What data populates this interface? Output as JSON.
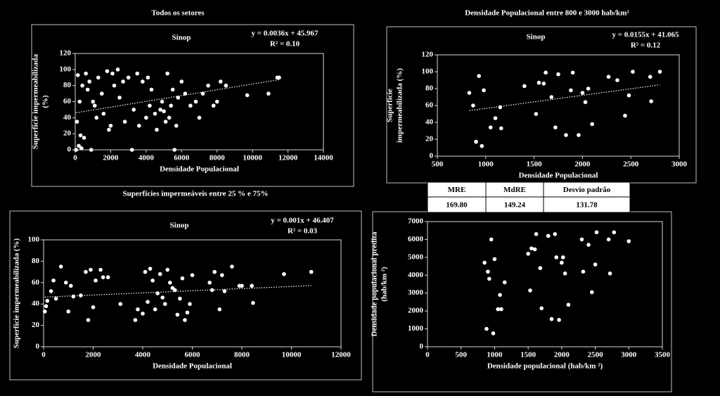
{
  "chart_data": [
    {
      "type": "scatter",
      "title": "Todos os setores",
      "subtitle": "Sinop",
      "annotations": [
        "y = 0.0036x + 45.967",
        "R² = 0.10"
      ],
      "trend": {
        "slope": 0.0036,
        "intercept": 45.967
      },
      "xlabel": "Densidade Populacional",
      "ylabel": [
        "Superfície impermeabilizada",
        "(%)"
      ],
      "color": "#ffffff",
      "x": [
        50,
        100,
        150,
        200,
        250,
        300,
        350,
        400,
        500,
        600,
        700,
        800,
        900,
        1000,
        1100,
        1200,
        1300,
        1500,
        1600,
        1800,
        1900,
        2000,
        2100,
        2200,
        2400,
        2500,
        2700,
        2800,
        3000,
        3200,
        3300,
        3500,
        3600,
        3800,
        4000,
        4100,
        4200,
        4300,
        4500,
        4600,
        4800,
        4900,
        5000,
        5100,
        5200,
        5300,
        5400,
        5500,
        5600,
        5700,
        5800,
        6000,
        6200,
        6500,
        6800,
        7000,
        7200,
        7500,
        7800,
        8000,
        8200,
        8500,
        9700,
        10900,
        11400,
        11500
      ],
      "values": [
        0,
        35,
        93,
        5,
        60,
        18,
        2,
        80,
        15,
        95,
        75,
        85,
        0,
        60,
        55,
        40,
        90,
        70,
        45,
        98,
        25,
        30,
        95,
        80,
        100,
        65,
        85,
        35,
        90,
        0,
        50,
        95,
        30,
        85,
        40,
        90,
        55,
        75,
        45,
        25,
        50,
        60,
        48,
        35,
        95,
        40,
        55,
        75,
        0,
        30,
        65,
        85,
        70,
        55,
        60,
        40,
        70,
        80,
        55,
        60,
        85,
        80,
        68,
        70,
        90,
        90
      ],
      "xlim": [
        0,
        14000
      ],
      "xticks": [
        0,
        2000,
        4000,
        6000,
        8000,
        10000,
        12000,
        14000
      ],
      "ylim": [
        0,
        120
      ],
      "yticks": [
        0,
        20,
        40,
        60,
        80,
        100,
        120
      ]
    },
    {
      "type": "scatter",
      "title": "Densidade Populacional entre 800 e 3000 hab/km²",
      "subtitle": "Sinop",
      "annotations": [
        "y = 0.0155x + 41.065",
        "R² = 0.12"
      ],
      "trend": {
        "slope": 0.0155,
        "intercept": 41.065
      },
      "xlabel": "Densidade Populacional",
      "ylabel": [
        "Superficie",
        "impermeabilizada  (%)"
      ],
      "color": "#ffffff",
      "x": [
        830,
        870,
        900,
        930,
        960,
        980,
        1050,
        1100,
        1150,
        1160,
        1400,
        1520,
        1550,
        1600,
        1620,
        1680,
        1720,
        1750,
        1830,
        1880,
        1900,
        1960,
        2000,
        2030,
        2060,
        2100,
        2270,
        2360,
        2440,
        2480,
        2520,
        2700,
        2710,
        2800
      ],
      "values": [
        75,
        60,
        17,
        95,
        12,
        78,
        34,
        45,
        58,
        33,
        83,
        50,
        87,
        86,
        99,
        70,
        34,
        97,
        25,
        78,
        99,
        25,
        75,
        64,
        80,
        38,
        94,
        90,
        48,
        72,
        100,
        94,
        65,
        100
      ],
      "xlim": [
        500,
        3000
      ],
      "xticks": [
        500,
        1000,
        1500,
        2000,
        2500,
        3000
      ],
      "ylim": [
        0,
        120
      ],
      "yticks": [
        0,
        20,
        40,
        60,
        80,
        100,
        120
      ]
    },
    {
      "type": "scatter",
      "title": "Superfícies impermeáveis entre 25 % e 75%",
      "subtitle": "Sinop",
      "annotations": [
        "y = 0.001x + 46.407",
        "R² = 0.03"
      ],
      "trend": {
        "slope": 0.001,
        "intercept": 46.407
      },
      "xlabel": "Densidade Populacional",
      "ylabel": [
        "Superfície impermeabilizada (%)"
      ],
      "color": "#ffffff",
      "x": [
        50,
        100,
        150,
        300,
        400,
        500,
        700,
        900,
        1000,
        1100,
        1200,
        1500,
        1700,
        1800,
        1900,
        2000,
        2100,
        2300,
        2400,
        2600,
        3100,
        3700,
        3800,
        4000,
        4100,
        4200,
        4300,
        4400,
        4500,
        4600,
        4700,
        4800,
        4900,
        5000,
        5100,
        5200,
        5300,
        5400,
        5500,
        5600,
        5700,
        5800,
        5900,
        6000,
        6700,
        6800,
        6900,
        7100,
        7200,
        7600,
        7900,
        8000,
        8400,
        8450,
        9700,
        10800,
        7300
      ],
      "values": [
        33,
        38,
        43,
        52,
        62,
        45,
        75,
        60,
        33,
        57,
        47,
        48,
        70,
        25,
        72,
        37,
        62,
        72,
        65,
        65,
        40,
        25,
        35,
        31,
        70,
        42,
        73,
        62,
        35,
        50,
        68,
        46,
        40,
        72,
        60,
        55,
        53,
        30,
        45,
        64,
        25,
        32,
        40,
        67,
        60,
        53,
        70,
        35,
        67,
        75,
        57,
        57,
        57,
        41,
        68,
        70,
        52
      ],
      "xlim": [
        0,
        12000
      ],
      "xticks": [
        0,
        2000,
        4000,
        6000,
        8000,
        10000,
        12000
      ],
      "ylim": [
        0,
        100
      ],
      "yticks": [
        0,
        20,
        40,
        60,
        80,
        100
      ]
    },
    {
      "type": "scatter",
      "xlabel": "Densidade populacional  (hab/km ²)",
      "ylabel": [
        "Densidade populacional predita",
        "(hab/km ²)"
      ],
      "color": "#ffffff",
      "x": [
        850,
        880,
        900,
        920,
        950,
        980,
        1000,
        1050,
        1080,
        1100,
        1150,
        1500,
        1530,
        1550,
        1600,
        1620,
        1680,
        1700,
        1800,
        1850,
        1900,
        1920,
        1960,
        2000,
        2020,
        2050,
        2100,
        2300,
        2320,
        2400,
        2450,
        2500,
        2520,
        2700,
        2720,
        2780,
        3000
      ],
      "values": [
        4700,
        1000,
        4200,
        3800,
        6000,
        750,
        4900,
        2100,
        2900,
        2100,
        3600,
        5200,
        3150,
        5500,
        5450,
        6300,
        4400,
        2150,
        6200,
        1550,
        6300,
        5000,
        1500,
        4700,
        5000,
        4100,
        2350,
        6000,
        4200,
        5700,
        3050,
        4600,
        6400,
        6000,
        4100,
        6400,
        5900
      ],
      "xlim": [
        0,
        3500
      ],
      "xticks": [
        0,
        500,
        1000,
        1500,
        2000,
        2500,
        3000,
        3500
      ],
      "ylim": [
        0,
        7000
      ],
      "yticks": [
        0,
        1000,
        2000,
        3000,
        4000,
        5000,
        6000,
        7000
      ]
    }
  ],
  "table": {
    "header": [
      "MRE",
      "MdRE",
      "Desvio padrão"
    ],
    "rows": [
      [
        "169.80",
        "149.24",
        "131.78"
      ]
    ]
  }
}
